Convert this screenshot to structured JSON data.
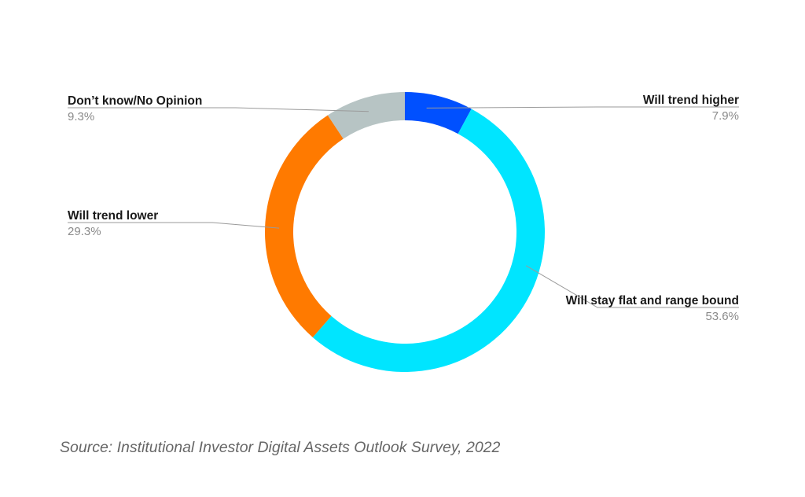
{
  "chart_data": {
    "type": "pie",
    "donut": true,
    "slices": [
      {
        "label": "Will trend higher",
        "value_label": "7.9%",
        "value": 7.9,
        "color": "#0050ff"
      },
      {
        "label": "Will stay flat and range bound",
        "value_label": "53.6%",
        "value": 53.6,
        "color": "#00e5ff"
      },
      {
        "label": "Will trend lower",
        "value_label": "29.3%",
        "value": 29.3,
        "color": "#ff7a00"
      },
      {
        "label": "Don’t know/No Opinion",
        "value_label": "9.3%",
        "value": 9.3,
        "color": "#b7c4c4"
      }
    ],
    "start_angle_deg": 0,
    "direction": "clockwise"
  },
  "source": "Source: Institutional Investor Digital Assets Outlook Survey, 2022"
}
